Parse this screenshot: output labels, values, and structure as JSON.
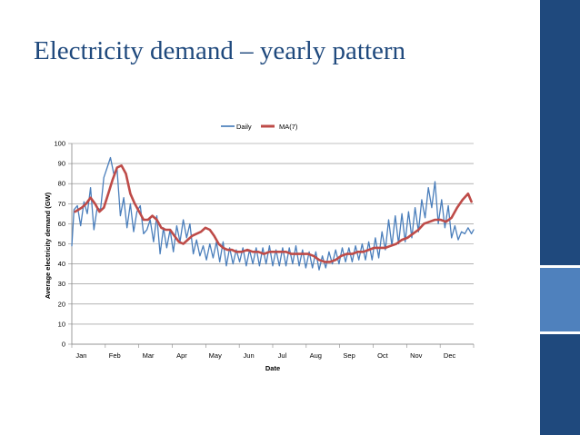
{
  "slide": {
    "title": "Electricity demand – yearly pattern"
  },
  "colors": {
    "title": "#1f497d",
    "daily_series": "#4a7ebb",
    "ma_series": "#be4b48",
    "gridline": "#868686",
    "sidebar_dark": "#1f497d",
    "sidebar_light": "#4f81bd"
  },
  "chart_data": {
    "type": "line",
    "title": "",
    "xlabel": "Date",
    "ylabel": "Average electricity demand (GW)",
    "ylim": [
      0,
      100
    ],
    "y_ticks": [
      0,
      10,
      20,
      30,
      40,
      50,
      60,
      70,
      80,
      90,
      100
    ],
    "x_tick_labels": [
      "Jan",
      "Feb",
      "Mar",
      "Apr",
      "May",
      "Jun",
      "Jul",
      "Aug",
      "Sep",
      "Oct",
      "Nov",
      "Dec"
    ],
    "x_unit": "day of year",
    "xlim": [
      1,
      365
    ],
    "grid": "horizontal",
    "legend": "top-center",
    "series": [
      {
        "name": "Daily",
        "x": [
          1,
          3,
          6,
          9,
          12,
          15,
          18,
          21,
          24,
          27,
          30,
          33,
          36,
          39,
          42,
          45,
          48,
          51,
          54,
          57,
          60,
          63,
          66,
          69,
          72,
          75,
          78,
          81,
          84,
          87,
          90,
          93,
          96,
          99,
          102,
          105,
          108,
          111,
          114,
          117,
          120,
          123,
          126,
          129,
          132,
          135,
          138,
          141,
          144,
          147,
          150,
          153,
          156,
          159,
          162,
          165,
          168,
          171,
          174,
          177,
          180,
          183,
          186,
          189,
          192,
          195,
          198,
          201,
          204,
          207,
          210,
          213,
          216,
          219,
          222,
          225,
          228,
          231,
          234,
          237,
          240,
          243,
          246,
          249,
          252,
          255,
          258,
          261,
          264,
          267,
          270,
          273,
          276,
          279,
          282,
          285,
          288,
          291,
          294,
          297,
          300,
          303,
          306,
          309,
          312,
          315,
          318,
          321,
          324,
          327,
          330,
          333,
          336,
          339,
          342,
          345,
          348,
          351,
          354,
          357,
          360,
          363,
          365
        ],
        "values": [
          49,
          67,
          69,
          59,
          71,
          65,
          78,
          57,
          68,
          67,
          83,
          88,
          93,
          85,
          87,
          64,
          73,
          58,
          70,
          56,
          66,
          69,
          55,
          57,
          62,
          51,
          64,
          45,
          58,
          48,
          57,
          46,
          59,
          51,
          62,
          53,
          60,
          45,
          52,
          44,
          49,
          42,
          50,
          43,
          51,
          41,
          51,
          39,
          48,
          40,
          47,
          41,
          48,
          39,
          47,
          40,
          48,
          39,
          48,
          40,
          49,
          39,
          47,
          39,
          48,
          39,
          48,
          40,
          49,
          39,
          47,
          38,
          46,
          38,
          46,
          37,
          44,
          38,
          46,
          40,
          47,
          40,
          48,
          41,
          48,
          41,
          49,
          42,
          50,
          42,
          51,
          42,
          53,
          43,
          56,
          47,
          62,
          49,
          64,
          50,
          65,
          51,
          66,
          53,
          68,
          56,
          72,
          63,
          78,
          68,
          81,
          60,
          72,
          58,
          69,
          53,
          59,
          52,
          56,
          55,
          58,
          55,
          57
        ]
      },
      {
        "name": "MA(7)",
        "x": [
          4,
          7,
          10,
          14,
          18,
          22,
          26,
          30,
          34,
          38,
          42,
          46,
          50,
          54,
          58,
          62,
          66,
          70,
          74,
          78,
          82,
          86,
          90,
          94,
          98,
          102,
          106,
          110,
          114,
          118,
          122,
          126,
          130,
          134,
          138,
          142,
          146,
          150,
          155,
          160,
          165,
          170,
          175,
          180,
          185,
          190,
          195,
          200,
          205,
          210,
          215,
          220,
          225,
          230,
          235,
          240,
          245,
          250,
          255,
          260,
          265,
          270,
          275,
          280,
          285,
          290,
          295,
          300,
          305,
          310,
          315,
          320,
          325,
          330,
          335,
          340,
          345,
          350,
          355,
          360,
          363
        ],
        "values": [
          66,
          67,
          68,
          70,
          73,
          70,
          66,
          68,
          75,
          82,
          88,
          89,
          85,
          75,
          70,
          66,
          62,
          62,
          64,
          62,
          58,
          57,
          57,
          54,
          51,
          50,
          52,
          54,
          55,
          56,
          58,
          57,
          54,
          50,
          48,
          47,
          47,
          46,
          46,
          47,
          46,
          46,
          45,
          46,
          46,
          46,
          46,
          45,
          45,
          45,
          45,
          44,
          42,
          41,
          41,
          42,
          44,
          45,
          45,
          46,
          46,
          47,
          48,
          48,
          48,
          49,
          50,
          52,
          53,
          55,
          57,
          60,
          61,
          62,
          62,
          61,
          63,
          68,
          72,
          75,
          71
        ]
      }
    ]
  }
}
